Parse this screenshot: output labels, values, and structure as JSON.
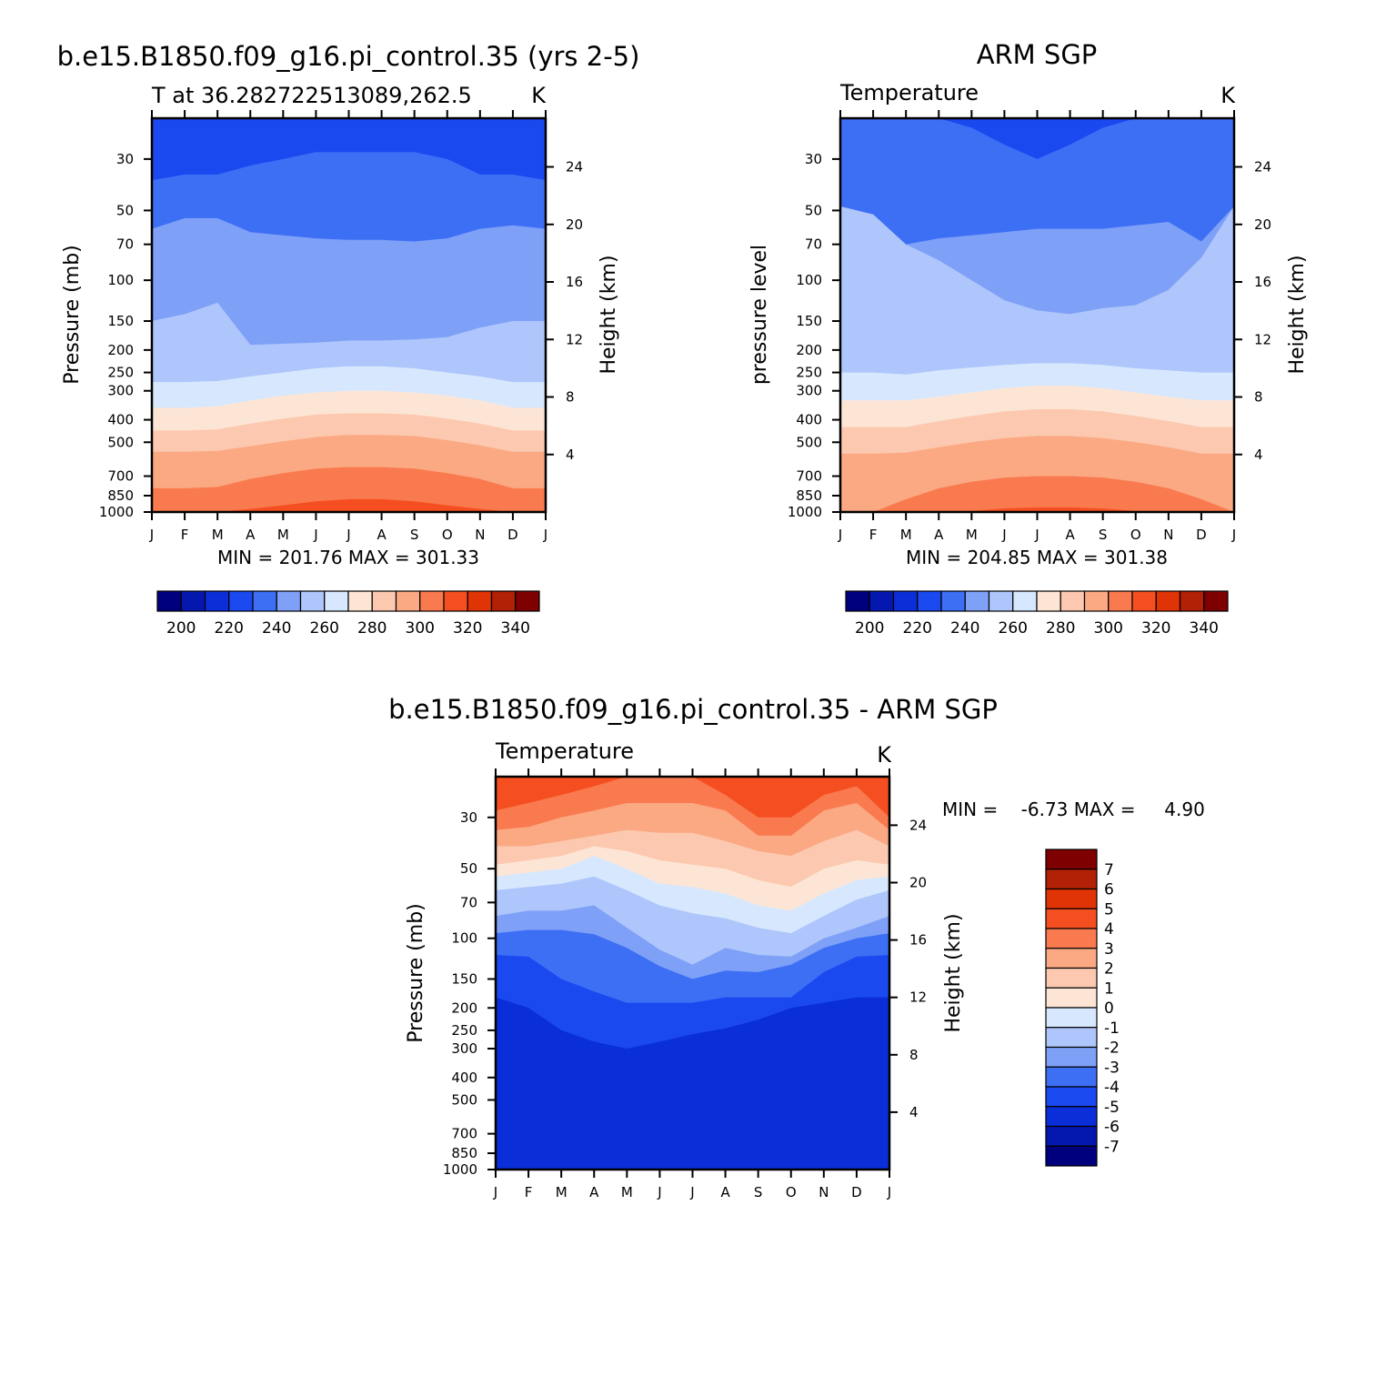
{
  "chart_data": [
    {
      "type": "heatmap",
      "title": "b.e15.B1850.f09_g16.pi_control.35 (yrs 2-5)",
      "subtitle_left": "T at 36.282722513089,262.5",
      "subtitle_right": "K",
      "ylabel": "Pressure (mb)",
      "y2label": "Height (km)",
      "x_ticks": [
        "J",
        "F",
        "M",
        "A",
        "M",
        "J",
        "J",
        "A",
        "S",
        "O",
        "N",
        "D",
        "J"
      ],
      "y_ticks": [
        "30",
        "50",
        "70",
        "100",
        "150",
        "200",
        "250",
        "300",
        "400",
        "500",
        "700",
        "850",
        "1000"
      ],
      "y_tick_values": [
        30,
        50,
        70,
        100,
        150,
        200,
        250,
        300,
        400,
        500,
        700,
        850,
        1000
      ],
      "y2_ticks": [
        "24",
        "20",
        "16",
        "12",
        "8",
        "4"
      ],
      "y2_tick_values": [
        24,
        20,
        16,
        12,
        8,
        4
      ],
      "ylim_mb": [
        1000,
        20
      ],
      "minmax_text": "MIN = 201.76 MAX = 301.33",
      "min": 201.76,
      "max": 301.33,
      "contour_interval": 10,
      "colorbar": {
        "labels": [
          "200",
          "220",
          "240",
          "260",
          "280",
          "300",
          "320",
          "340"
        ],
        "colors": [
          "#00007f",
          "#0418b0",
          "#0a2ed8",
          "#1a49f0",
          "#3d6ff5",
          "#7ea0f7",
          "#aec6fb",
          "#d7e8fe",
          "#fde5d5",
          "#fcc9b0",
          "#fba983",
          "#fa7a4f",
          "#f54f21",
          "#e03306",
          "#b22005",
          "#7e0000"
        ]
      },
      "contours_mb": [
        {
          "level": 220,
          "p": [
            37,
            35,
            35,
            32,
            30,
            28,
            28,
            28,
            28,
            30,
            35,
            35,
            37
          ]
        },
        {
          "level": 230,
          "p": [
            60,
            54,
            54,
            62,
            64,
            66,
            67,
            67,
            68,
            66,
            60,
            58,
            60
          ]
        },
        {
          "level": 240,
          "p": [
            150,
            140,
            125,
            190,
            188,
            186,
            182,
            182,
            180,
            176,
            160,
            150,
            150
          ]
        },
        {
          "level": 250,
          "p": [
            275,
            275,
            272,
            260,
            250,
            240,
            235,
            235,
            240,
            250,
            260,
            275,
            275
          ]
        },
        {
          "level": 260,
          "p": [
            355,
            355,
            350,
            330,
            315,
            305,
            300,
            300,
            305,
            315,
            330,
            355,
            355
          ]
        },
        {
          "level": 270,
          "p": [
            445,
            445,
            440,
            415,
            395,
            380,
            375,
            375,
            380,
            395,
            415,
            445,
            445
          ]
        },
        {
          "level": 280,
          "p": [
            550,
            550,
            545,
            520,
            495,
            475,
            465,
            465,
            470,
            490,
            515,
            550,
            550
          ]
        },
        {
          "level": 290,
          "p": [
            790,
            790,
            780,
            720,
            680,
            650,
            640,
            640,
            650,
            680,
            720,
            790,
            790
          ]
        },
        {
          "level": 300,
          "p": [
            1005,
            1005,
            1005,
            970,
            935,
            900,
            880,
            880,
            900,
            935,
            970,
            1005,
            1005
          ]
        }
      ]
    },
    {
      "type": "heatmap",
      "title": "ARM SGP",
      "subtitle_left": "Temperature",
      "subtitle_right": "K",
      "ylabel": "pressure level",
      "y2label": "Height (km)",
      "x_ticks": [
        "J",
        "F",
        "M",
        "A",
        "M",
        "J",
        "J",
        "A",
        "S",
        "O",
        "N",
        "D",
        "J"
      ],
      "y_ticks": [
        "30",
        "50",
        "70",
        "100",
        "150",
        "200",
        "250",
        "300",
        "400",
        "500",
        "700",
        "850",
        "1000"
      ],
      "y_tick_values": [
        30,
        50,
        70,
        100,
        150,
        200,
        250,
        300,
        400,
        500,
        700,
        850,
        1000
      ],
      "y2_ticks": [
        "24",
        "20",
        "16",
        "12",
        "8",
        "4"
      ],
      "y2_tick_values": [
        24,
        20,
        16,
        12,
        8,
        4
      ],
      "ylim_mb": [
        1000,
        20
      ],
      "minmax_text": "MIN = 204.85 MAX = 301.38",
      "min": 204.85,
      "max": 301.38,
      "contour_interval": 10,
      "colorbar": {
        "labels": [
          "200",
          "220",
          "240",
          "260",
          "280",
          "300",
          "320",
          "340"
        ],
        "colors": [
          "#00007f",
          "#0418b0",
          "#0a2ed8",
          "#1a49f0",
          "#3d6ff5",
          "#7ea0f7",
          "#aec6fb",
          "#d7e8fe",
          "#fde5d5",
          "#fcc9b0",
          "#fba983",
          "#fa7a4f",
          "#f54f21",
          "#e03306",
          "#b22005",
          "#7e0000"
        ]
      },
      "contours_mb": [
        {
          "level": 220,
          "p": [
            20,
            20,
            20,
            20,
            22,
            26,
            30,
            26,
            22,
            20,
            20,
            20,
            20
          ]
        },
        {
          "level": 230,
          "p": [
            100,
            80,
            70,
            66,
            64,
            62,
            60,
            60,
            60,
            58,
            56,
            68,
            48
          ]
        },
        {
          "level": 240,
          "p": [
            48,
            52,
            70,
            82,
            100,
            122,
            135,
            140,
            132,
            128,
            110,
            80,
            48
          ]
        },
        {
          "level": 250,
          "p": [
            250,
            250,
            255,
            245,
            238,
            232,
            228,
            228,
            232,
            240,
            245,
            250,
            250
          ]
        },
        {
          "level": 260,
          "p": [
            330,
            330,
            330,
            318,
            305,
            292,
            285,
            285,
            292,
            305,
            318,
            330,
            330
          ]
        },
        {
          "level": 270,
          "p": [
            430,
            430,
            430,
            405,
            385,
            368,
            360,
            360,
            368,
            385,
            405,
            430,
            430
          ]
        },
        {
          "level": 280,
          "p": [
            560,
            560,
            555,
            525,
            500,
            480,
            470,
            470,
            480,
            500,
            525,
            560,
            560
          ]
        },
        {
          "level": 290,
          "p": [
            1005,
            1005,
            880,
            790,
            740,
            710,
            700,
            700,
            710,
            740,
            790,
            880,
            1005
          ]
        },
        {
          "level": 300,
          "p": [
            1005,
            1005,
            1005,
            1005,
            990,
            965,
            955,
            955,
            965,
            990,
            1005,
            1005,
            1005
          ]
        }
      ]
    },
    {
      "type": "heatmap",
      "title": "b.e15.B1850.f09_g16.pi_control.35 - ARM SGP",
      "subtitle_left": "Temperature",
      "subtitle_right": "K",
      "ylabel": "Pressure (mb)",
      "y2label": "Height (km)",
      "x_ticks": [
        "J",
        "F",
        "M",
        "A",
        "M",
        "J",
        "J",
        "A",
        "S",
        "O",
        "N",
        "D",
        "J"
      ],
      "y_ticks": [
        "30",
        "50",
        "70",
        "100",
        "150",
        "200",
        "250",
        "300",
        "400",
        "500",
        "700",
        "850",
        "1000"
      ],
      "y_tick_values": [
        30,
        50,
        70,
        100,
        150,
        200,
        250,
        300,
        400,
        500,
        700,
        850,
        1000
      ],
      "y2_ticks": [
        "24",
        "20",
        "16",
        "12",
        "8",
        "4"
      ],
      "y2_tick_values": [
        24,
        20,
        16,
        12,
        8,
        4
      ],
      "ylim_mb": [
        1000,
        20
      ],
      "minmax_text": "MIN =    -6.73 MAX =     4.90",
      "min": -6.73,
      "max": 4.9,
      "contour_interval": 1,
      "colorbar": {
        "labels": [
          "7",
          "6",
          "5",
          "4",
          "3",
          "2",
          "1",
          "0",
          "-1",
          "-2",
          "-3",
          "-4",
          "-5",
          "-6",
          "-7"
        ],
        "colors": [
          "#7e0000",
          "#b22005",
          "#e03306",
          "#f54f21",
          "#fa7a4f",
          "#fba983",
          "#fcc9b0",
          "#fde5d5",
          "#d7e8fe",
          "#aec6fb",
          "#7ea0f7",
          "#3d6ff5",
          "#1a49f0",
          "#0a2ed8",
          "#0418b0",
          "#00007f"
        ]
      },
      "contours_mb": [
        {
          "level": 4,
          "p": [
            28,
            26,
            24,
            22,
            20,
            20,
            20,
            24,
            30,
            30,
            24,
            22,
            30
          ]
        },
        {
          "level": 3,
          "p": [
            34,
            33,
            30,
            28,
            26,
            26,
            26,
            28,
            36,
            36,
            28,
            26,
            34
          ]
        },
        {
          "level": 2,
          "p": [
            40,
            40,
            38,
            36,
            34,
            35,
            35,
            38,
            42,
            44,
            38,
            34,
            40
          ]
        },
        {
          "level": 1,
          "p": [
            48,
            46,
            44,
            40,
            42,
            46,
            48,
            50,
            56,
            60,
            50,
            46,
            48
          ]
        },
        {
          "level": 0,
          "p": [
            54,
            52,
            50,
            44,
            50,
            58,
            60,
            64,
            72,
            76,
            64,
            56,
            54
          ]
        },
        {
          "level": -1,
          "p": [
            62,
            60,
            58,
            54,
            62,
            72,
            78,
            82,
            90,
            95,
            80,
            68,
            62
          ]
        },
        {
          "level": -2,
          "p": [
            80,
            76,
            76,
            72,
            90,
            112,
            130,
            110,
            118,
            120,
            100,
            90,
            80
          ]
        },
        {
          "level": -3,
          "p": [
            95,
            92,
            92,
            96,
            110,
            132,
            150,
            138,
            140,
            130,
            110,
            100,
            95
          ]
        },
        {
          "level": -4,
          "p": [
            118,
            120,
            150,
            170,
            190,
            190,
            190,
            180,
            180,
            180,
            140,
            120,
            118
          ]
        },
        {
          "level": -5,
          "p": [
            180,
            200,
            250,
            280,
            300,
            280,
            260,
            245,
            225,
            200,
            190,
            180,
            180
          ]
        }
      ]
    }
  ]
}
